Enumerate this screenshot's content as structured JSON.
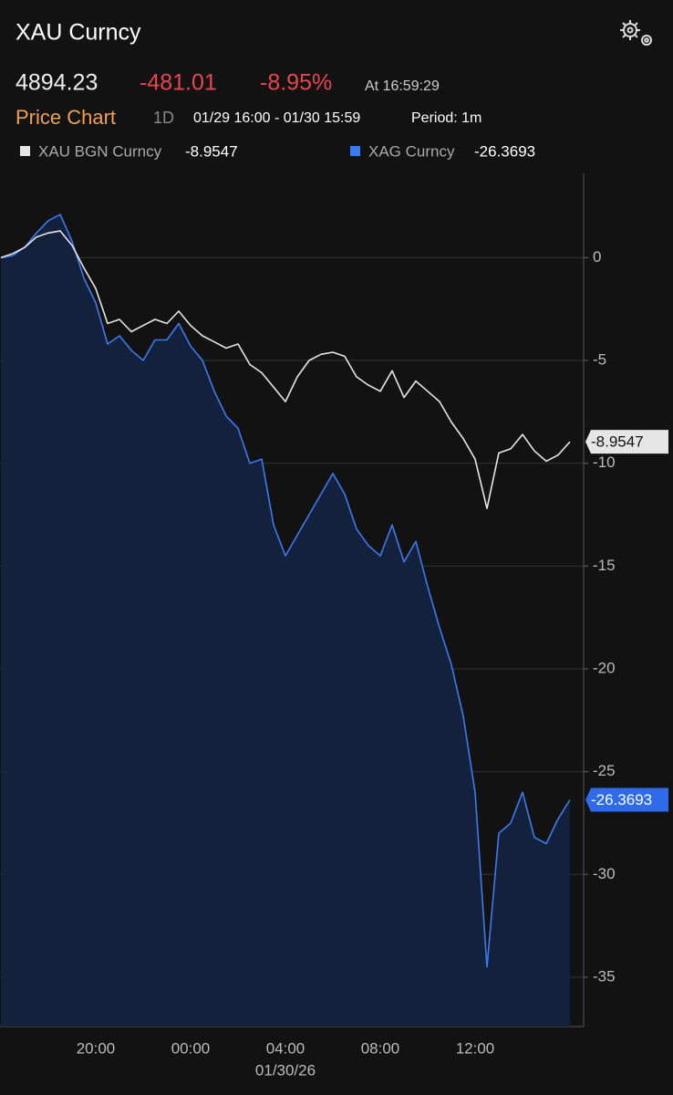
{
  "header": {
    "title": "XAU Curncy",
    "price": "4894.23",
    "change": "-481.01",
    "change_pct": "-8.95%",
    "time": "At 16:59:29",
    "tab": "Price Chart",
    "range": "1D",
    "window": "01/29 16:00 - 01/30 15:59",
    "period": "Period: 1m"
  },
  "chart_data": {
    "type": "line",
    "area_series": 1,
    "categories": [
      null,
      null,
      null,
      null,
      null,
      null,
      null,
      null,
      "20:00",
      null,
      null,
      null,
      null,
      null,
      null,
      null,
      "00:00",
      null,
      null,
      null,
      null,
      null,
      null,
      null,
      "04:00",
      null,
      null,
      null,
      null,
      null,
      null,
      null,
      "08:00",
      null,
      null,
      null,
      null,
      null,
      null,
      null,
      "12:00",
      null,
      null,
      null,
      null,
      null,
      null,
      null,
      null
    ],
    "date_label": "01/30/26",
    "series": [
      {
        "name": "XAU BGN Curncy",
        "color": "#e6e6e6",
        "values": [
          0,
          0.2,
          0.5,
          1.0,
          1.2,
          1.3,
          0.6,
          -0.5,
          -1.5,
          -3.2,
          -3.0,
          -3.6,
          -3.3,
          -3.0,
          -3.2,
          -2.6,
          -3.3,
          -3.8,
          -4.1,
          -4.4,
          -4.2,
          -5.2,
          -5.6,
          -6.3,
          -7.0,
          -5.8,
          -5.0,
          -4.7,
          -4.6,
          -4.8,
          -5.8,
          -6.2,
          -6.5,
          -5.5,
          -6.8,
          -6.0,
          -6.5,
          -7.0,
          -8.0,
          -8.8,
          -9.8,
          -12.2,
          -9.5,
          -9.3,
          -8.6,
          -9.4,
          -9.9,
          -9.6,
          -8.9547
        ]
      },
      {
        "name": "XAG Curncy",
        "color": "#3b7bf0",
        "values": [
          0,
          0.1,
          0.5,
          1.2,
          1.8,
          2.1,
          0.8,
          -1.0,
          -2.2,
          -4.2,
          -3.8,
          -4.5,
          -5.0,
          -4.0,
          -4.0,
          -3.2,
          -4.3,
          -5.0,
          -6.5,
          -7.7,
          -8.3,
          -10.0,
          -9.8,
          -13.0,
          -14.5,
          -13.5,
          -12.5,
          -11.5,
          -10.5,
          -11.5,
          -13.2,
          -14.0,
          -14.5,
          -13.0,
          -14.8,
          -13.8,
          -16.0,
          -18.0,
          -19.8,
          -22.3,
          -26.0,
          -34.5,
          -28.0,
          -27.5,
          -26.0,
          -28.2,
          -28.5,
          -27.3,
          -26.3693
        ]
      }
    ],
    "ylim": [
      -37.4,
      4.1
    ],
    "yticks": [
      0,
      -5,
      -10,
      -15,
      -20,
      -25,
      -30,
      -35
    ],
    "grid": true
  }
}
